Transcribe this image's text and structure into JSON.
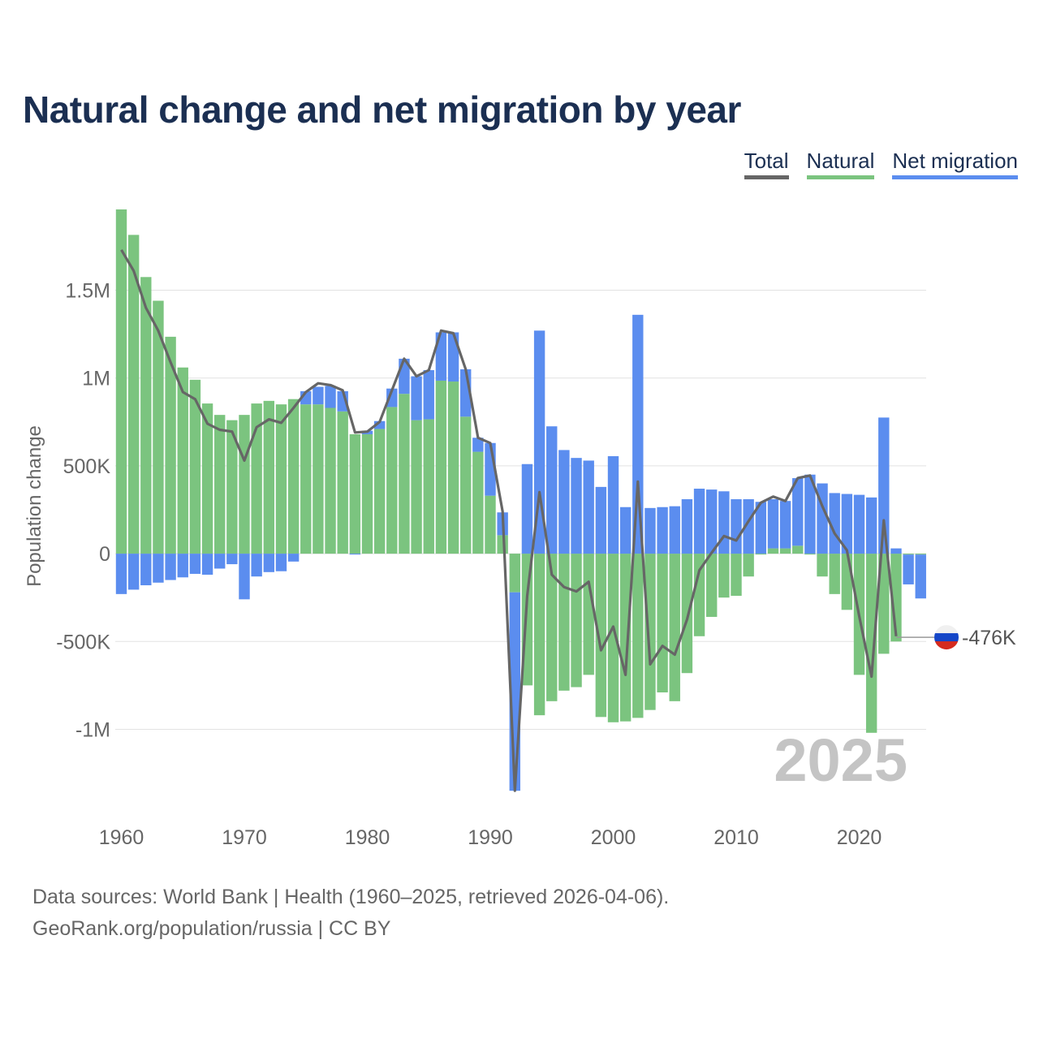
{
  "title": "Natural change and net migration by year",
  "legend": {
    "total": "Total",
    "natural": "Natural",
    "net_migration": "Net migration"
  },
  "colors": {
    "natural": "#7bc47f",
    "net_migration": "#5b8def",
    "total": "#666666",
    "title": "#1b2f52",
    "year_watermark": "#c4c4c4"
  },
  "footer": {
    "line1": "Data sources: World Bank | Health (1960–2025, retrieved 2026-04-06).",
    "line2": "GeoRank.org/population/russia | CC BY"
  },
  "chart_data": {
    "type": "bar",
    "title": "Natural change and net migration by year",
    "xlabel": "",
    "ylabel": "Population change",
    "ylim": [
      -1400000,
      1960000
    ],
    "yticks": [
      -1000000,
      -500000,
      0,
      500000,
      1000000,
      1500000
    ],
    "ytick_labels": [
      "-1M",
      "-500K",
      "0",
      "500K",
      "1M",
      "1.5M"
    ],
    "xticks": [
      1960,
      1970,
      1980,
      1990,
      2000,
      2010,
      2020
    ],
    "xtick_labels": [
      "1960",
      "1970",
      "1980",
      "1990",
      "2000",
      "2010",
      "2020"
    ],
    "grid": true,
    "legend_position": "top-right",
    "year_label": "2025",
    "end_label": "-476K",
    "end_value": -476000,
    "years": [
      1960,
      1961,
      1962,
      1963,
      1964,
      1965,
      1966,
      1967,
      1968,
      1969,
      1970,
      1971,
      1972,
      1973,
      1974,
      1975,
      1976,
      1977,
      1978,
      1979,
      1980,
      1981,
      1982,
      1983,
      1984,
      1985,
      1986,
      1987,
      1988,
      1989,
      1990,
      1991,
      1992,
      1993,
      1994,
      1995,
      1996,
      1997,
      1998,
      1999,
      2000,
      2001,
      2002,
      2003,
      2004,
      2005,
      2006,
      2007,
      2008,
      2009,
      2010,
      2011,
      2012,
      2013,
      2014,
      2015,
      2016,
      2017,
      2018,
      2019,
      2020,
      2021,
      2022,
      2023,
      2024,
      2025
    ],
    "series": [
      {
        "name": "Natural",
        "values": [
          1960000,
          1815000,
          1575000,
          1440000,
          1235000,
          1060000,
          990000,
          855000,
          790000,
          760000,
          790000,
          855000,
          870000,
          850000,
          880000,
          850000,
          850000,
          830000,
          810000,
          680000,
          680000,
          710000,
          835000,
          910000,
          760000,
          765000,
          985000,
          980000,
          780000,
          580000,
          330000,
          105000,
          -220000,
          -750000,
          -920000,
          -840000,
          -780000,
          -760000,
          -690000,
          -930000,
          -960000,
          -955000,
          -935000,
          -890000,
          -790000,
          -840000,
          -680000,
          -470000,
          -360000,
          -250000,
          -240000,
          -130000,
          -5000,
          30000,
          30000,
          45000,
          -5000,
          -130000,
          -230000,
          -320000,
          -690000,
          -1020000,
          -570000,
          -500000,
          -5000,
          -5000
        ]
      },
      {
        "name": "Net migration",
        "values": [
          -230000,
          -205000,
          -180000,
          -165000,
          -150000,
          -135000,
          -115000,
          -120000,
          -85000,
          -60000,
          -260000,
          -130000,
          -105000,
          -100000,
          -45000,
          75000,
          100000,
          125000,
          115000,
          -5000,
          20000,
          45000,
          105000,
          200000,
          250000,
          280000,
          275000,
          280000,
          270000,
          80000,
          300000,
          130000,
          -1130000,
          510000,
          1270000,
          725000,
          590000,
          545000,
          530000,
          380000,
          555000,
          265000,
          1360000,
          260000,
          265000,
          270000,
          310000,
          370000,
          365000,
          355000,
          310000,
          310000,
          295000,
          280000,
          270000,
          385000,
          450000,
          400000,
          345000,
          340000,
          335000,
          320000,
          775000,
          30000,
          -170000,
          -250000
        ]
      },
      {
        "name": "Total",
        "values": [
          1730000,
          1610000,
          1400000,
          1270000,
          1090000,
          920000,
          880000,
          740000,
          705000,
          695000,
          530000,
          720000,
          765000,
          745000,
          830000,
          920000,
          970000,
          960000,
          930000,
          690000,
          695000,
          750000,
          930000,
          1110000,
          1010000,
          1045000,
          1270000,
          1255000,
          1050000,
          660000,
          630000,
          240000,
          -1350000,
          -240000,
          350000,
          -120000,
          -190000,
          -215000,
          -160000,
          -550000,
          -415000,
          -690000,
          410000,
          -630000,
          -525000,
          -575000,
          -375000,
          -95000,
          5000,
          100000,
          75000,
          185000,
          290000,
          325000,
          300000,
          430000,
          445000,
          270000,
          115000,
          20000,
          -355000,
          -700000,
          190000,
          -470000,
          null,
          null
        ]
      }
    ]
  }
}
